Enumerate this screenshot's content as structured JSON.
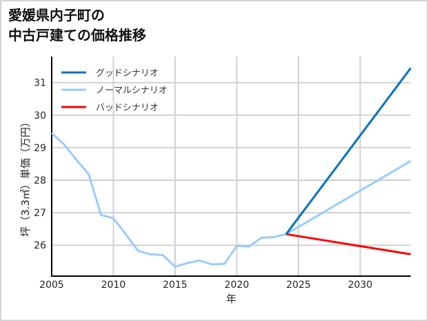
{
  "title": {
    "line1": "愛媛県内子町の",
    "line2": "中古戸建ての価格推移"
  },
  "chart_data": {
    "type": "line",
    "title": "愛媛県内子町の中古戸建ての価格推移",
    "xlabel": "年",
    "ylabel": "坪（3.3㎡）単価（万円）",
    "xlim": [
      2005,
      2034.1
    ],
    "ylim": [
      25.05,
      31.8
    ],
    "x_ticks": [
      2005,
      2010,
      2015,
      2020,
      2025,
      2030
    ],
    "y_ticks": [
      26,
      27,
      28,
      29,
      30,
      31
    ],
    "grid": true,
    "legend_position": "upper left",
    "series": [
      {
        "name": "グッドシナリオ",
        "color": "#0070c0",
        "x": [
          2024,
          2034.1
        ],
        "values": [
          26.34,
          31.45
        ]
      },
      {
        "name": "ノーマルシナリオ",
        "color": "#99ccff",
        "x": [
          2005,
          2006,
          2007,
          2008,
          2009,
          2010,
          2011,
          2012,
          2013,
          2014,
          2015,
          2016,
          2017,
          2018,
          2019,
          2020,
          2021,
          2022,
          2023,
          2024,
          2034.1
        ],
        "values": [
          29.45,
          29.1,
          28.63,
          28.18,
          26.93,
          26.83,
          26.34,
          25.83,
          25.72,
          25.7,
          25.34,
          25.45,
          25.53,
          25.41,
          25.43,
          25.98,
          25.96,
          26.23,
          26.25,
          26.34,
          28.59
        ]
      },
      {
        "name": "バッドシナリオ",
        "color": "#ff0000",
        "x": [
          2024,
          2034.1
        ],
        "values": [
          26.34,
          25.72
        ]
      }
    ]
  }
}
